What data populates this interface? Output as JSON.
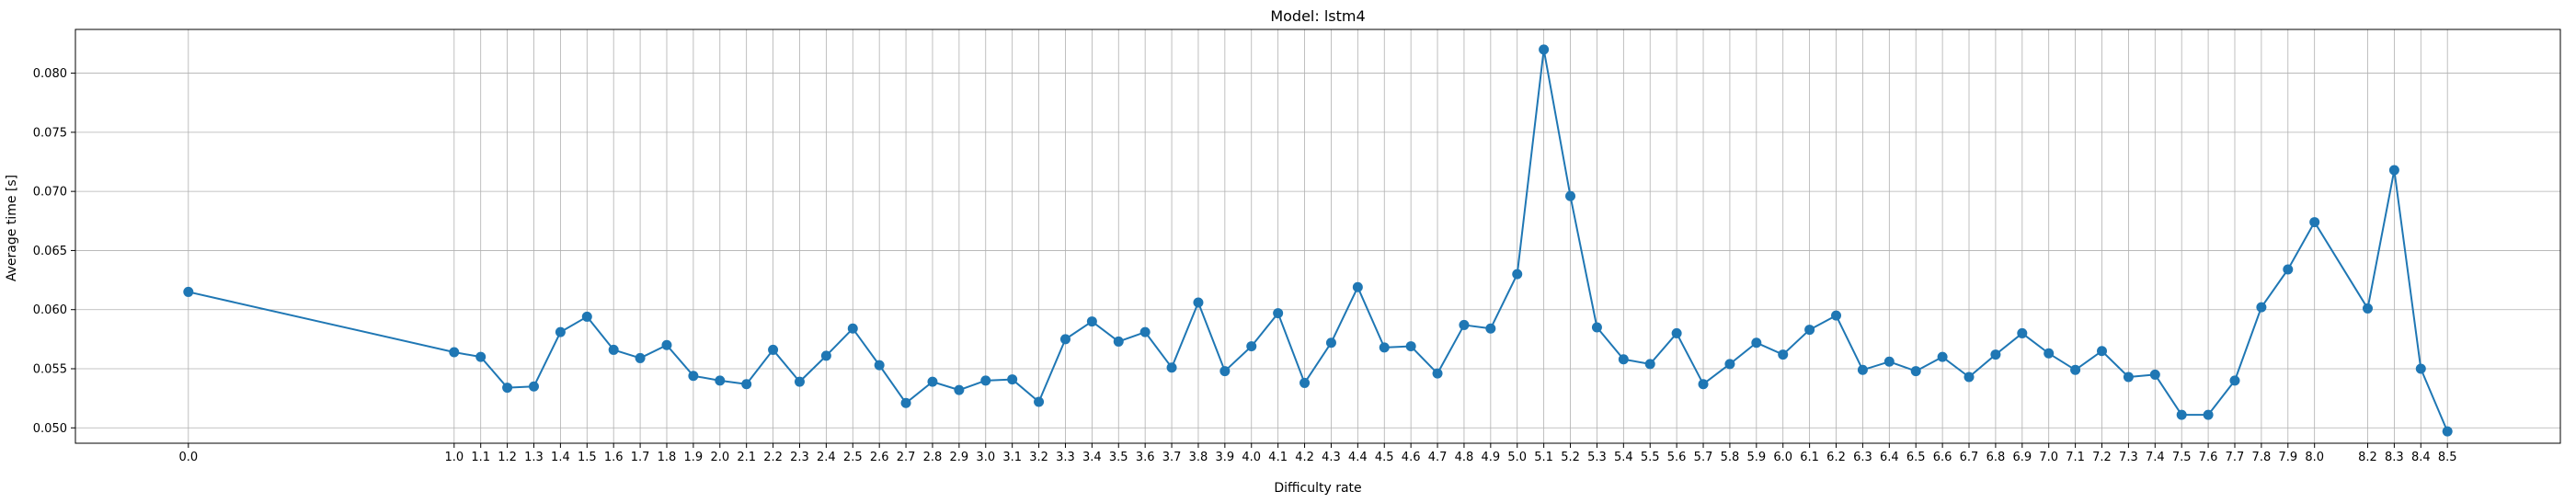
{
  "chart_data": {
    "type": "line",
    "title": "Model: lstm4",
    "xlabel": "Difficulty rate",
    "ylabel": "Average time [s]",
    "xlim": [
      -0.425,
      8.925
    ],
    "ylim": [
      0.0487,
      0.0837
    ],
    "grid": true,
    "color": "#1f77b4",
    "x_ticks": [
      "0.0",
      "1.0",
      "1.1",
      "1.2",
      "1.3",
      "1.4",
      "1.5",
      "1.6",
      "1.7",
      "1.8",
      "1.9",
      "2.0",
      "2.1",
      "2.2",
      "2.3",
      "2.4",
      "2.5",
      "2.6",
      "2.7",
      "2.8",
      "2.9",
      "3.0",
      "3.1",
      "3.2",
      "3.3",
      "3.4",
      "3.5",
      "3.6",
      "3.7",
      "3.8",
      "3.9",
      "4.0",
      "4.1",
      "4.2",
      "4.3",
      "4.4",
      "4.5",
      "4.6",
      "4.7",
      "4.8",
      "4.9",
      "5.0",
      "5.1",
      "5.2",
      "5.3",
      "5.4",
      "5.5",
      "5.6",
      "5.7",
      "5.8",
      "5.9",
      "6.0",
      "6.1",
      "6.2",
      "6.3",
      "6.4",
      "6.5",
      "6.6",
      "6.7",
      "6.8",
      "6.9",
      "7.0",
      "7.1",
      "7.2",
      "7.3",
      "7.4",
      "7.5",
      "7.6",
      "7.7",
      "7.8",
      "7.9",
      "8.0",
      "8.2",
      "8.3",
      "8.4",
      "8.5"
    ],
    "y_ticks": [
      "0.050",
      "0.055",
      "0.060",
      "0.065",
      "0.070",
      "0.075",
      "0.080"
    ],
    "series": [
      {
        "x": [
          0.0,
          1.0,
          1.1,
          1.2,
          1.3,
          1.4,
          1.5,
          1.6,
          1.7,
          1.8,
          1.9,
          2.0,
          2.1,
          2.2,
          2.3,
          2.4,
          2.5,
          2.6,
          2.7,
          2.8,
          2.9,
          3.0,
          3.1,
          3.2,
          3.3,
          3.4,
          3.5,
          3.6,
          3.7,
          3.8,
          3.9,
          4.0,
          4.1,
          4.2,
          4.3,
          4.4,
          4.5,
          4.6,
          4.7,
          4.8,
          4.9,
          5.0,
          5.1,
          5.2,
          5.3,
          5.4,
          5.5,
          5.6,
          5.7,
          5.8,
          5.9,
          6.0,
          6.1,
          6.2,
          6.3,
          6.4,
          6.5,
          6.6,
          6.7,
          6.8,
          6.9,
          7.0,
          7.1,
          7.2,
          7.3,
          7.4,
          7.5,
          7.6,
          7.7,
          7.8,
          7.9,
          8.0,
          8.2,
          8.3,
          8.4,
          8.5
        ],
        "y": [
          0.0615,
          0.0564,
          0.056,
          0.0534,
          0.0535,
          0.0581,
          0.0594,
          0.0566,
          0.0559,
          0.057,
          0.0544,
          0.054,
          0.0537,
          0.0566,
          0.0539,
          0.0561,
          0.0584,
          0.0553,
          0.0521,
          0.0539,
          0.0532,
          0.054,
          0.0541,
          0.0522,
          0.0575,
          0.059,
          0.0573,
          0.0581,
          0.0551,
          0.0606,
          0.0548,
          0.0569,
          0.0597,
          0.0538,
          0.0572,
          0.0619,
          0.0568,
          0.0569,
          0.0546,
          0.0587,
          0.0584,
          0.063,
          0.082,
          0.0696,
          0.0585,
          0.0558,
          0.0554,
          0.058,
          0.0537,
          0.0554,
          0.0572,
          0.0562,
          0.0583,
          0.0595,
          0.0549,
          0.0556,
          0.0548,
          0.056,
          0.0543,
          0.0562,
          0.058,
          0.0563,
          0.0549,
          0.0565,
          0.0543,
          0.0545,
          0.0511,
          0.0511,
          0.054,
          0.0602,
          0.0634,
          0.0674,
          0.0601,
          0.0718,
          0.055,
          0.0497
        ]
      }
    ]
  }
}
